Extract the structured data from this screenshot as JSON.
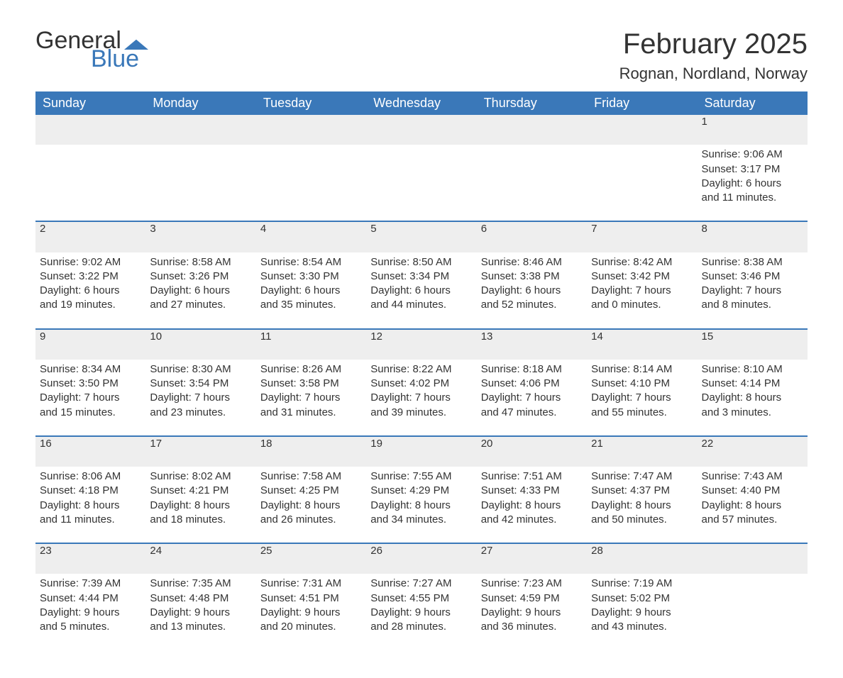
{
  "brand": {
    "word1": "General",
    "word2": "Blue"
  },
  "title": "February 2025",
  "location": "Rognan, Nordland, Norway",
  "colors": {
    "header_bg": "#3a78b9",
    "header_text": "#ffffff",
    "daynum_bg": "#eeeeee",
    "daynum_border": "#3a78b9",
    "body_text": "#333333",
    "brand_blue": "#3a78b9",
    "background": "#ffffff"
  },
  "typography": {
    "title_fontsize": 40,
    "location_fontsize": 22,
    "header_fontsize": 18,
    "cell_fontsize": 15,
    "daynum_fontsize": 18,
    "font_family": "Segoe UI"
  },
  "layout": {
    "columns": 7,
    "weeks": 5
  },
  "weekdays": [
    "Sunday",
    "Monday",
    "Tuesday",
    "Wednesday",
    "Thursday",
    "Friday",
    "Saturday"
  ],
  "weeks": [
    [
      null,
      null,
      null,
      null,
      null,
      null,
      {
        "n": "1",
        "sr": "Sunrise: 9:06 AM",
        "ss": "Sunset: 3:17 PM",
        "d1": "Daylight: 6 hours",
        "d2": "and 11 minutes."
      }
    ],
    [
      {
        "n": "2",
        "sr": "Sunrise: 9:02 AM",
        "ss": "Sunset: 3:22 PM",
        "d1": "Daylight: 6 hours",
        "d2": "and 19 minutes."
      },
      {
        "n": "3",
        "sr": "Sunrise: 8:58 AM",
        "ss": "Sunset: 3:26 PM",
        "d1": "Daylight: 6 hours",
        "d2": "and 27 minutes."
      },
      {
        "n": "4",
        "sr": "Sunrise: 8:54 AM",
        "ss": "Sunset: 3:30 PM",
        "d1": "Daylight: 6 hours",
        "d2": "and 35 minutes."
      },
      {
        "n": "5",
        "sr": "Sunrise: 8:50 AM",
        "ss": "Sunset: 3:34 PM",
        "d1": "Daylight: 6 hours",
        "d2": "and 44 minutes."
      },
      {
        "n": "6",
        "sr": "Sunrise: 8:46 AM",
        "ss": "Sunset: 3:38 PM",
        "d1": "Daylight: 6 hours",
        "d2": "and 52 minutes."
      },
      {
        "n": "7",
        "sr": "Sunrise: 8:42 AM",
        "ss": "Sunset: 3:42 PM",
        "d1": "Daylight: 7 hours",
        "d2": "and 0 minutes."
      },
      {
        "n": "8",
        "sr": "Sunrise: 8:38 AM",
        "ss": "Sunset: 3:46 PM",
        "d1": "Daylight: 7 hours",
        "d2": "and 8 minutes."
      }
    ],
    [
      {
        "n": "9",
        "sr": "Sunrise: 8:34 AM",
        "ss": "Sunset: 3:50 PM",
        "d1": "Daylight: 7 hours",
        "d2": "and 15 minutes."
      },
      {
        "n": "10",
        "sr": "Sunrise: 8:30 AM",
        "ss": "Sunset: 3:54 PM",
        "d1": "Daylight: 7 hours",
        "d2": "and 23 minutes."
      },
      {
        "n": "11",
        "sr": "Sunrise: 8:26 AM",
        "ss": "Sunset: 3:58 PM",
        "d1": "Daylight: 7 hours",
        "d2": "and 31 minutes."
      },
      {
        "n": "12",
        "sr": "Sunrise: 8:22 AM",
        "ss": "Sunset: 4:02 PM",
        "d1": "Daylight: 7 hours",
        "d2": "and 39 minutes."
      },
      {
        "n": "13",
        "sr": "Sunrise: 8:18 AM",
        "ss": "Sunset: 4:06 PM",
        "d1": "Daylight: 7 hours",
        "d2": "and 47 minutes."
      },
      {
        "n": "14",
        "sr": "Sunrise: 8:14 AM",
        "ss": "Sunset: 4:10 PM",
        "d1": "Daylight: 7 hours",
        "d2": "and 55 minutes."
      },
      {
        "n": "15",
        "sr": "Sunrise: 8:10 AM",
        "ss": "Sunset: 4:14 PM",
        "d1": "Daylight: 8 hours",
        "d2": "and 3 minutes."
      }
    ],
    [
      {
        "n": "16",
        "sr": "Sunrise: 8:06 AM",
        "ss": "Sunset: 4:18 PM",
        "d1": "Daylight: 8 hours",
        "d2": "and 11 minutes."
      },
      {
        "n": "17",
        "sr": "Sunrise: 8:02 AM",
        "ss": "Sunset: 4:21 PM",
        "d1": "Daylight: 8 hours",
        "d2": "and 18 minutes."
      },
      {
        "n": "18",
        "sr": "Sunrise: 7:58 AM",
        "ss": "Sunset: 4:25 PM",
        "d1": "Daylight: 8 hours",
        "d2": "and 26 minutes."
      },
      {
        "n": "19",
        "sr": "Sunrise: 7:55 AM",
        "ss": "Sunset: 4:29 PM",
        "d1": "Daylight: 8 hours",
        "d2": "and 34 minutes."
      },
      {
        "n": "20",
        "sr": "Sunrise: 7:51 AM",
        "ss": "Sunset: 4:33 PM",
        "d1": "Daylight: 8 hours",
        "d2": "and 42 minutes."
      },
      {
        "n": "21",
        "sr": "Sunrise: 7:47 AM",
        "ss": "Sunset: 4:37 PM",
        "d1": "Daylight: 8 hours",
        "d2": "and 50 minutes."
      },
      {
        "n": "22",
        "sr": "Sunrise: 7:43 AM",
        "ss": "Sunset: 4:40 PM",
        "d1": "Daylight: 8 hours",
        "d2": "and 57 minutes."
      }
    ],
    [
      {
        "n": "23",
        "sr": "Sunrise: 7:39 AM",
        "ss": "Sunset: 4:44 PM",
        "d1": "Daylight: 9 hours",
        "d2": "and 5 minutes."
      },
      {
        "n": "24",
        "sr": "Sunrise: 7:35 AM",
        "ss": "Sunset: 4:48 PM",
        "d1": "Daylight: 9 hours",
        "d2": "and 13 minutes."
      },
      {
        "n": "25",
        "sr": "Sunrise: 7:31 AM",
        "ss": "Sunset: 4:51 PM",
        "d1": "Daylight: 9 hours",
        "d2": "and 20 minutes."
      },
      {
        "n": "26",
        "sr": "Sunrise: 7:27 AM",
        "ss": "Sunset: 4:55 PM",
        "d1": "Daylight: 9 hours",
        "d2": "and 28 minutes."
      },
      {
        "n": "27",
        "sr": "Sunrise: 7:23 AM",
        "ss": "Sunset: 4:59 PM",
        "d1": "Daylight: 9 hours",
        "d2": "and 36 minutes."
      },
      {
        "n": "28",
        "sr": "Sunrise: 7:19 AM",
        "ss": "Sunset: 5:02 PM",
        "d1": "Daylight: 9 hours",
        "d2": "and 43 minutes."
      },
      null
    ]
  ]
}
